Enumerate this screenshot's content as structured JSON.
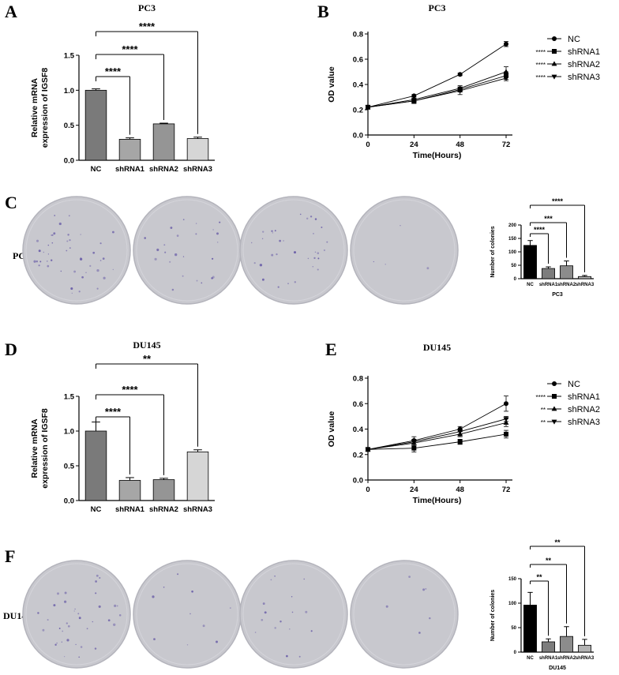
{
  "panel_labels": {
    "a": "A",
    "b": "B",
    "c": "C",
    "d": "D",
    "e": "E",
    "f": "F"
  },
  "colors": {
    "nc_bar": "#7a7a7a",
    "shrna1_bar": "#a6a6a6",
    "shrna2_bar": "#959595",
    "shrna3_bar": "#d6d6d6",
    "colony_nc": "#000000",
    "colony_sh1": "#7d7d7d",
    "colony_sh2": "#8c8c8c",
    "colony_sh3": "#b3b3b3",
    "dish_fill": "#c8c8ce",
    "colony_dot": "#6b5fa8"
  },
  "dishes": {
    "pc3": {
      "row_label": "PC3",
      "labels": [
        "NC",
        "shRNA1",
        "shRNA2",
        "shRNA3"
      ],
      "colony_level": [
        0.55,
        0.3,
        0.4,
        0.05
      ]
    },
    "du145": {
      "row_label": "DU145",
      "labels": [
        "NC",
        "shRNA1",
        "shRNA2",
        "shRNA3"
      ],
      "colony_level": [
        0.45,
        0.12,
        0.2,
        0.08
      ]
    }
  },
  "chart_data": [
    {
      "id": "A",
      "type": "bar",
      "title": "PC3",
      "categories": [
        "NC",
        "shRNA1",
        "shRNA2",
        "shRNA3"
      ],
      "values": [
        1.0,
        0.3,
        0.52,
        0.31
      ],
      "errors": [
        0.02,
        0.02,
        0.01,
        0.02
      ],
      "ylabel": [
        "Relative mRNA",
        "expression of IGSF8"
      ],
      "xlabel": "",
      "ylim": [
        0,
        1.5
      ],
      "yticks": [
        "0.0",
        "0.5",
        "1.0",
        "1.5"
      ],
      "significance": [
        "****",
        "****",
        "****"
      ]
    },
    {
      "id": "B",
      "type": "line",
      "title": "PC3",
      "x": [
        0,
        24,
        48,
        72
      ],
      "xticks": [
        "0",
        "24",
        "48",
        "72"
      ],
      "yticks": [
        "0.0",
        "0.2",
        "0.4",
        "0.6",
        "0.8"
      ],
      "xlabel": "Time(Hours)",
      "ylabel": "OD value",
      "xlim": [
        0,
        72
      ],
      "ylim": [
        0,
        0.8
      ],
      "legend_position": "right",
      "series": [
        {
          "name": "NC",
          "marker": "circle",
          "sig": "",
          "values": [
            0.22,
            0.31,
            0.48,
            0.72
          ],
          "errors": [
            0.01,
            0.01,
            0.01,
            0.02
          ]
        },
        {
          "name": "shRNA1",
          "marker": "square",
          "sig": "****",
          "values": [
            0.22,
            0.27,
            0.36,
            0.47
          ],
          "errors": [
            0.01,
            0.02,
            0.02,
            0.03
          ]
        },
        {
          "name": "shRNA2",
          "marker": "triangle-up",
          "sig": "****",
          "values": [
            0.22,
            0.28,
            0.37,
            0.5
          ],
          "errors": [
            0.01,
            0.02,
            0.02,
            0.04
          ]
        },
        {
          "name": "shRNA3",
          "marker": "triangle-down",
          "sig": "****",
          "values": [
            0.22,
            0.27,
            0.35,
            0.45
          ],
          "errors": [
            0.01,
            0.02,
            0.03,
            0.02
          ]
        }
      ]
    },
    {
      "id": "C",
      "type": "bar",
      "title": "",
      "categories": [
        "NC",
        "shRNA1",
        "shRNA2",
        "shRNA3"
      ],
      "values": [
        124,
        38,
        48,
        8
      ],
      "errors": [
        18,
        6,
        18,
        4
      ],
      "ylabel": [
        "Number of colonies"
      ],
      "xlabel": "PC3",
      "ylim": [
        0,
        200
      ],
      "yticks": [
        "0",
        "50",
        "100",
        "150",
        "200"
      ],
      "significance": [
        "****",
        "***",
        "****"
      ]
    },
    {
      "id": "D",
      "type": "bar",
      "title": "DU145",
      "categories": [
        "NC",
        "shRNA1",
        "shRNA2",
        "shRNA3"
      ],
      "values": [
        1.0,
        0.29,
        0.3,
        0.7
      ],
      "errors": [
        0.13,
        0.04,
        0.02,
        0.03
      ],
      "ylabel": [
        "Relative mRNA",
        "expression of IGSF8"
      ],
      "xlabel": "",
      "ylim": [
        0,
        1.5
      ],
      "yticks": [
        "0.0",
        "0.5",
        "1.0",
        "1.5"
      ],
      "significance": [
        "****",
        "****",
        "**"
      ]
    },
    {
      "id": "E",
      "type": "line",
      "title": "DU145",
      "x": [
        0,
        24,
        48,
        72
      ],
      "xticks": [
        "0",
        "24",
        "48",
        "72"
      ],
      "yticks": [
        "0.0",
        "0.2",
        "0.4",
        "0.6",
        "0.8"
      ],
      "xlabel": "Time(Hours)",
      "ylabel": "OD value",
      "xlim": [
        0,
        72
      ],
      "ylim": [
        0,
        0.8
      ],
      "legend_position": "right",
      "series": [
        {
          "name": "NC",
          "marker": "circle",
          "sig": "",
          "values": [
            0.24,
            0.31,
            0.4,
            0.6
          ],
          "errors": [
            0.01,
            0.03,
            0.02,
            0.06
          ]
        },
        {
          "name": "shRNA1",
          "marker": "square",
          "sig": "****",
          "values": [
            0.24,
            0.25,
            0.3,
            0.36
          ],
          "errors": [
            0.01,
            0.03,
            0.02,
            0.03
          ]
        },
        {
          "name": "shRNA2",
          "marker": "triangle-up",
          "sig": "**",
          "values": [
            0.24,
            0.29,
            0.36,
            0.45
          ],
          "errors": [
            0.01,
            0.02,
            0.02,
            0.03
          ]
        },
        {
          "name": "shRNA3",
          "marker": "triangle-down",
          "sig": "**",
          "values": [
            0.24,
            0.3,
            0.38,
            0.48
          ],
          "errors": [
            0.01,
            0.02,
            0.02,
            0.02
          ]
        }
      ]
    },
    {
      "id": "F",
      "type": "bar",
      "title": "",
      "categories": [
        "NC",
        "shRNA1",
        "shRNA2",
        "shRNA3"
      ],
      "values": [
        96,
        21,
        32,
        14
      ],
      "errors": [
        26,
        6,
        20,
        12
      ],
      "ylabel": [
        "Number of colonies"
      ],
      "xlabel": "DU145",
      "ylim": [
        0,
        150
      ],
      "yticks": [
        "0",
        "50",
        "100",
        "150"
      ],
      "significance": [
        "**",
        "**",
        "**"
      ]
    }
  ]
}
